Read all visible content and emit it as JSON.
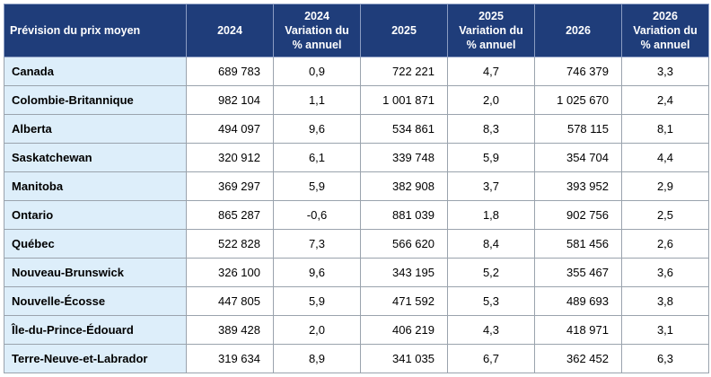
{
  "table": {
    "headers": [
      "Prévision du prix moyen",
      "2024",
      "2024 Variation du % annuel",
      "2025",
      "2025 Variation du % annuel",
      "2026",
      "2026 Variation du % annuel"
    ],
    "rows": [
      [
        "Canada",
        "689 783",
        "0,9",
        "722 221",
        "4,7",
        "746 379",
        "3,3"
      ],
      [
        "Colombie-Britannique",
        "982 104",
        "1,1",
        "1 001 871",
        "2,0",
        "1 025 670",
        "2,4"
      ],
      [
        "Alberta",
        "494 097",
        "9,6",
        "534 861",
        "8,3",
        "578 115",
        "8,1"
      ],
      [
        "Saskatchewan",
        "320 912",
        "6,1",
        "339 748",
        "5,9",
        "354 704",
        "4,4"
      ],
      [
        "Manitoba",
        "369 297",
        "5,9",
        "382 908",
        "3,7",
        "393 952",
        "2,9"
      ],
      [
        "Ontario",
        "865 287",
        "-0,6",
        "881 039",
        "1,8",
        "902 756",
        "2,5"
      ],
      [
        "Québec",
        "522 828",
        "7,3",
        "566 620",
        "8,4",
        "581 456",
        "2,6"
      ],
      [
        "Nouveau-Brunswick",
        "326 100",
        "9,6",
        "343 195",
        "5,2",
        "355 467",
        "3,6"
      ],
      [
        "Nouvelle-Écosse",
        "447 805",
        "5,9",
        "471 592",
        "5,3",
        "489 693",
        "3,8"
      ],
      [
        "Île-du-Prince-Édouard",
        "389 428",
        "2,0",
        "406 219",
        "4,3",
        "418 971",
        "3,1"
      ],
      [
        "Terre-Neuve-et-Labrador",
        "319 634",
        "8,9",
        "341 035",
        "6,7",
        "362 452",
        "6,3"
      ]
    ]
  },
  "colors": {
    "header_bg": "#1f3d7a",
    "header_text": "#ffffff",
    "province_bg": "#ddeefa",
    "grid": "#9aa3ad"
  }
}
